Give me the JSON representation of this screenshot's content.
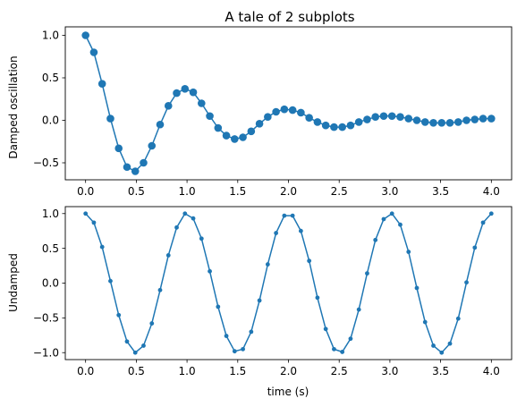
{
  "chart_data": [
    {
      "type": "line",
      "title": "A tale of 2 subplots",
      "xlabel": "",
      "ylabel": "Damped oscillation",
      "xlim": [
        -0.2,
        4.2
      ],
      "ylim": [
        -0.7,
        1.1
      ],
      "xticks": [
        "0.0",
        "0.5",
        "1.0",
        "1.5",
        "2.0",
        "2.5",
        "3.0",
        "3.5",
        "4.0"
      ],
      "xtick_values": [
        0,
        0.5,
        1,
        1.5,
        2,
        2.5,
        3,
        3.5,
        4
      ],
      "yticks": [
        "1.0",
        "0.5",
        "0.0",
        "−0.5"
      ],
      "ytick_values": [
        1,
        0.5,
        0,
        -0.5
      ],
      "marker": "circle-large",
      "color": "#1f77b4",
      "x": [
        0.0,
        0.0816,
        0.1633,
        0.2449,
        0.3265,
        0.4082,
        0.4898,
        0.5714,
        0.6531,
        0.7347,
        0.8163,
        0.898,
        0.9796,
        1.0612,
        1.1429,
        1.2245,
        1.3061,
        1.3878,
        1.4694,
        1.551,
        1.6327,
        1.7143,
        1.7959,
        1.8776,
        1.9592,
        2.0408,
        2.1224,
        2.2041,
        2.2857,
        2.3673,
        2.449,
        2.5306,
        2.6122,
        2.6939,
        2.7755,
        2.8571,
        2.9388,
        3.0204,
        3.102,
        3.1837,
        3.2653,
        3.3469,
        3.4286,
        3.5102,
        3.5918,
        3.6735,
        3.7551,
        3.8367,
        3.9184,
        4.0
      ],
      "y": [
        1.0,
        0.8,
        0.43,
        0.02,
        -0.33,
        -0.55,
        -0.6,
        -0.5,
        -0.3,
        -0.05,
        0.17,
        0.32,
        0.37,
        0.33,
        0.2,
        0.05,
        -0.09,
        -0.18,
        -0.22,
        -0.2,
        -0.13,
        -0.04,
        0.04,
        0.1,
        0.13,
        0.12,
        0.09,
        0.03,
        -0.02,
        -0.06,
        -0.08,
        -0.08,
        -0.06,
        -0.02,
        0.01,
        0.04,
        0.05,
        0.05,
        0.04,
        0.02,
        0.0,
        -0.02,
        -0.03,
        -0.03,
        -0.03,
        -0.02,
        0.0,
        0.01,
        0.02,
        0.02
      ]
    },
    {
      "type": "line",
      "title": "",
      "xlabel": "time (s)",
      "ylabel": "Undamped",
      "xlim": [
        -0.2,
        4.2
      ],
      "ylim": [
        -1.1,
        1.1
      ],
      "xticks": [
        "0.0",
        "0.5",
        "1.0",
        "1.5",
        "2.0",
        "2.5",
        "3.0",
        "3.5",
        "4.0"
      ],
      "xtick_values": [
        0,
        0.5,
        1,
        1.5,
        2,
        2.5,
        3,
        3.5,
        4
      ],
      "yticks": [
        "1.0",
        "0.5",
        "0.0",
        "−0.5",
        "−1.0"
      ],
      "ytick_values": [
        1,
        0.5,
        0,
        -0.5,
        -1
      ],
      "marker": "circle-small",
      "color": "#1f77b4",
      "x": [
        0.0,
        0.0816,
        0.1633,
        0.2449,
        0.3265,
        0.4082,
        0.4898,
        0.5714,
        0.6531,
        0.7347,
        0.8163,
        0.898,
        0.9796,
        1.0612,
        1.1429,
        1.2245,
        1.3061,
        1.3878,
        1.4694,
        1.551,
        1.6327,
        1.7143,
        1.7959,
        1.8776,
        1.9592,
        2.0408,
        2.1224,
        2.2041,
        2.2857,
        2.3673,
        2.449,
        2.5306,
        2.6122,
        2.6939,
        2.7755,
        2.8571,
        2.9388,
        3.0204,
        3.102,
        3.1837,
        3.2653,
        3.3469,
        3.4286,
        3.5102,
        3.5918,
        3.6735,
        3.7551,
        3.8367,
        3.9184,
        4.0
      ],
      "y": [
        1.0,
        0.87,
        0.52,
        0.03,
        -0.46,
        -0.84,
        -1.0,
        -0.9,
        -0.58,
        -0.1,
        0.4,
        0.8,
        1.0,
        0.93,
        0.64,
        0.17,
        -0.34,
        -0.76,
        -0.98,
        -0.95,
        -0.7,
        -0.25,
        0.27,
        0.72,
        0.97,
        0.97,
        0.75,
        0.32,
        -0.21,
        -0.66,
        -0.95,
        -0.99,
        -0.8,
        -0.38,
        0.14,
        0.62,
        0.92,
        1.0,
        0.84,
        0.45,
        -0.07,
        -0.56,
        -0.9,
        -1.0,
        -0.87,
        -0.51,
        0.01,
        0.51,
        0.87,
        1.0
      ]
    }
  ]
}
